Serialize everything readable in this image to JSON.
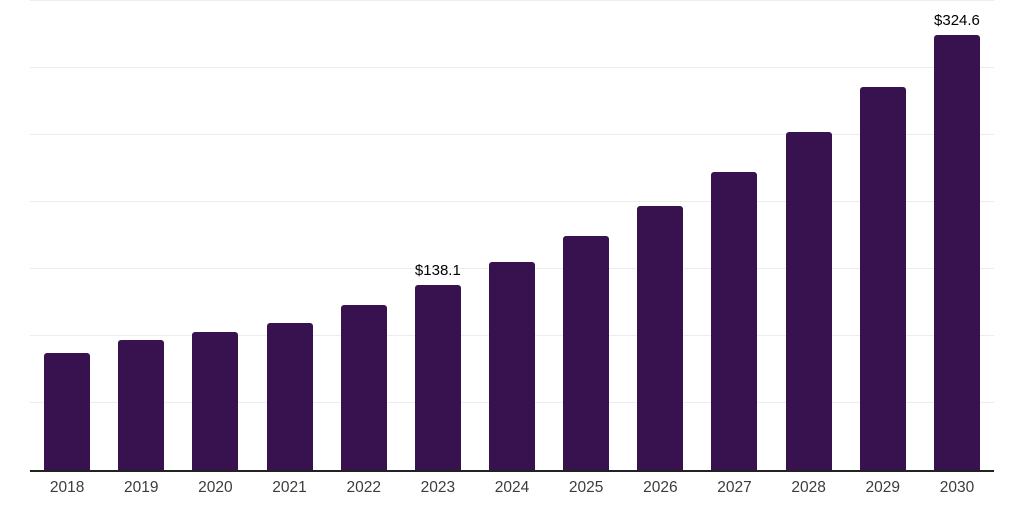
{
  "chart_data": {
    "type": "bar",
    "title": "",
    "xlabel": "",
    "ylabel": "",
    "categories": [
      "2018",
      "2019",
      "2020",
      "2021",
      "2022",
      "2023",
      "2024",
      "2025",
      "2026",
      "2027",
      "2028",
      "2029",
      "2030"
    ],
    "values": [
      87.3,
      97.0,
      103.0,
      109.7,
      123.1,
      138.1,
      155.2,
      174.6,
      197.0,
      222.4,
      252.2,
      285.8,
      324.6
    ],
    "point_labels": [
      null,
      null,
      null,
      null,
      null,
      "$138.1",
      null,
      null,
      null,
      null,
      null,
      null,
      "$324.6"
    ],
    "ylim": [
      0,
      350
    ],
    "gridline_step": 50,
    "grid": true,
    "legend": false,
    "colors": {
      "bar": "#38124E",
      "axis_line": "#222222",
      "gridline": "#ededed",
      "tick_label": "#3c3c3c",
      "data_label": "#000000",
      "background": "#ffffff"
    }
  }
}
